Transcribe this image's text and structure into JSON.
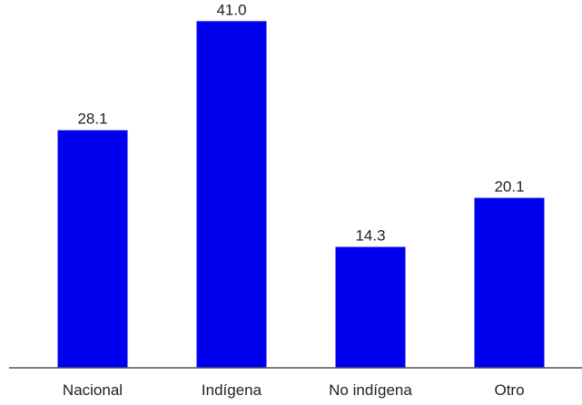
{
  "chart_data": {
    "type": "bar",
    "categories": [
      "Nacional",
      "Indígena",
      "No indígena",
      "Otro"
    ],
    "values": [
      28.1,
      41.0,
      14.3,
      20.1
    ],
    "value_labels": [
      "28.1",
      "41.0",
      "14.3",
      "20.1"
    ],
    "title": "",
    "xlabel": "",
    "ylabel": "",
    "ylim": [
      0,
      43.5
    ],
    "grid": false,
    "bar_color": "#0000ee"
  }
}
